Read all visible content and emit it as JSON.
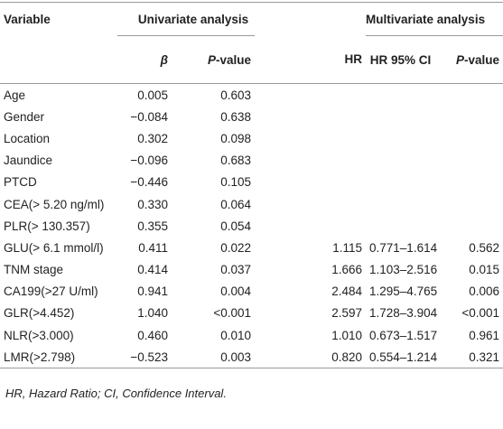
{
  "header": {
    "variable": "Variable",
    "univariate": "Univariate analysis",
    "multivariate": "Multivariate analysis",
    "columns": [
      "β",
      "P-value",
      "HR",
      "HR 95% CI",
      "P-value"
    ]
  },
  "rows": [
    [
      "Age",
      "0.005",
      "0.603",
      null,
      null,
      null
    ],
    [
      "Gender",
      "−0.084",
      "0.638",
      null,
      null,
      null
    ],
    [
      "Location",
      "0.302",
      "0.098",
      null,
      null,
      null
    ],
    [
      "Jaundice",
      "−0.096",
      "0.683",
      null,
      null,
      null
    ],
    [
      "PTCD",
      "−0.446",
      "0.105",
      null,
      null,
      null
    ],
    [
      "CEA(> 5.20 ng/ml)",
      "0.330",
      "0.064",
      null,
      null,
      null
    ],
    [
      "PLR(> 130.357)",
      "0.355",
      "0.054",
      null,
      null,
      null
    ],
    [
      "GLU(> 6.1 mmol/l)",
      "0.411",
      "0.022",
      "1.115",
      "0.771–1.614",
      "0.562"
    ],
    [
      "TNM stage",
      "0.414",
      "0.037",
      "1.666",
      "1.103–2.516",
      "0.015"
    ],
    [
      "CA199(>27 U/ml)",
      "0.941",
      "0.004",
      "2.484",
      "1.295–4.765",
      "0.006"
    ],
    [
      "GLR(>4.452)",
      "1.040",
      "<0.001",
      "2.597",
      "1.728–3.904",
      "<0.001"
    ],
    [
      "NLR(>3.000)",
      "0.460",
      "0.010",
      "1.010",
      "0.673–1.517",
      "0.961"
    ],
    [
      "LMR(>2.798)",
      "−0.523",
      "0.003",
      "0.820",
      "0.554–1.214",
      "0.321"
    ]
  ],
  "footnote": "HR, Hazard Ratio; CI, Confidence Interval."
}
